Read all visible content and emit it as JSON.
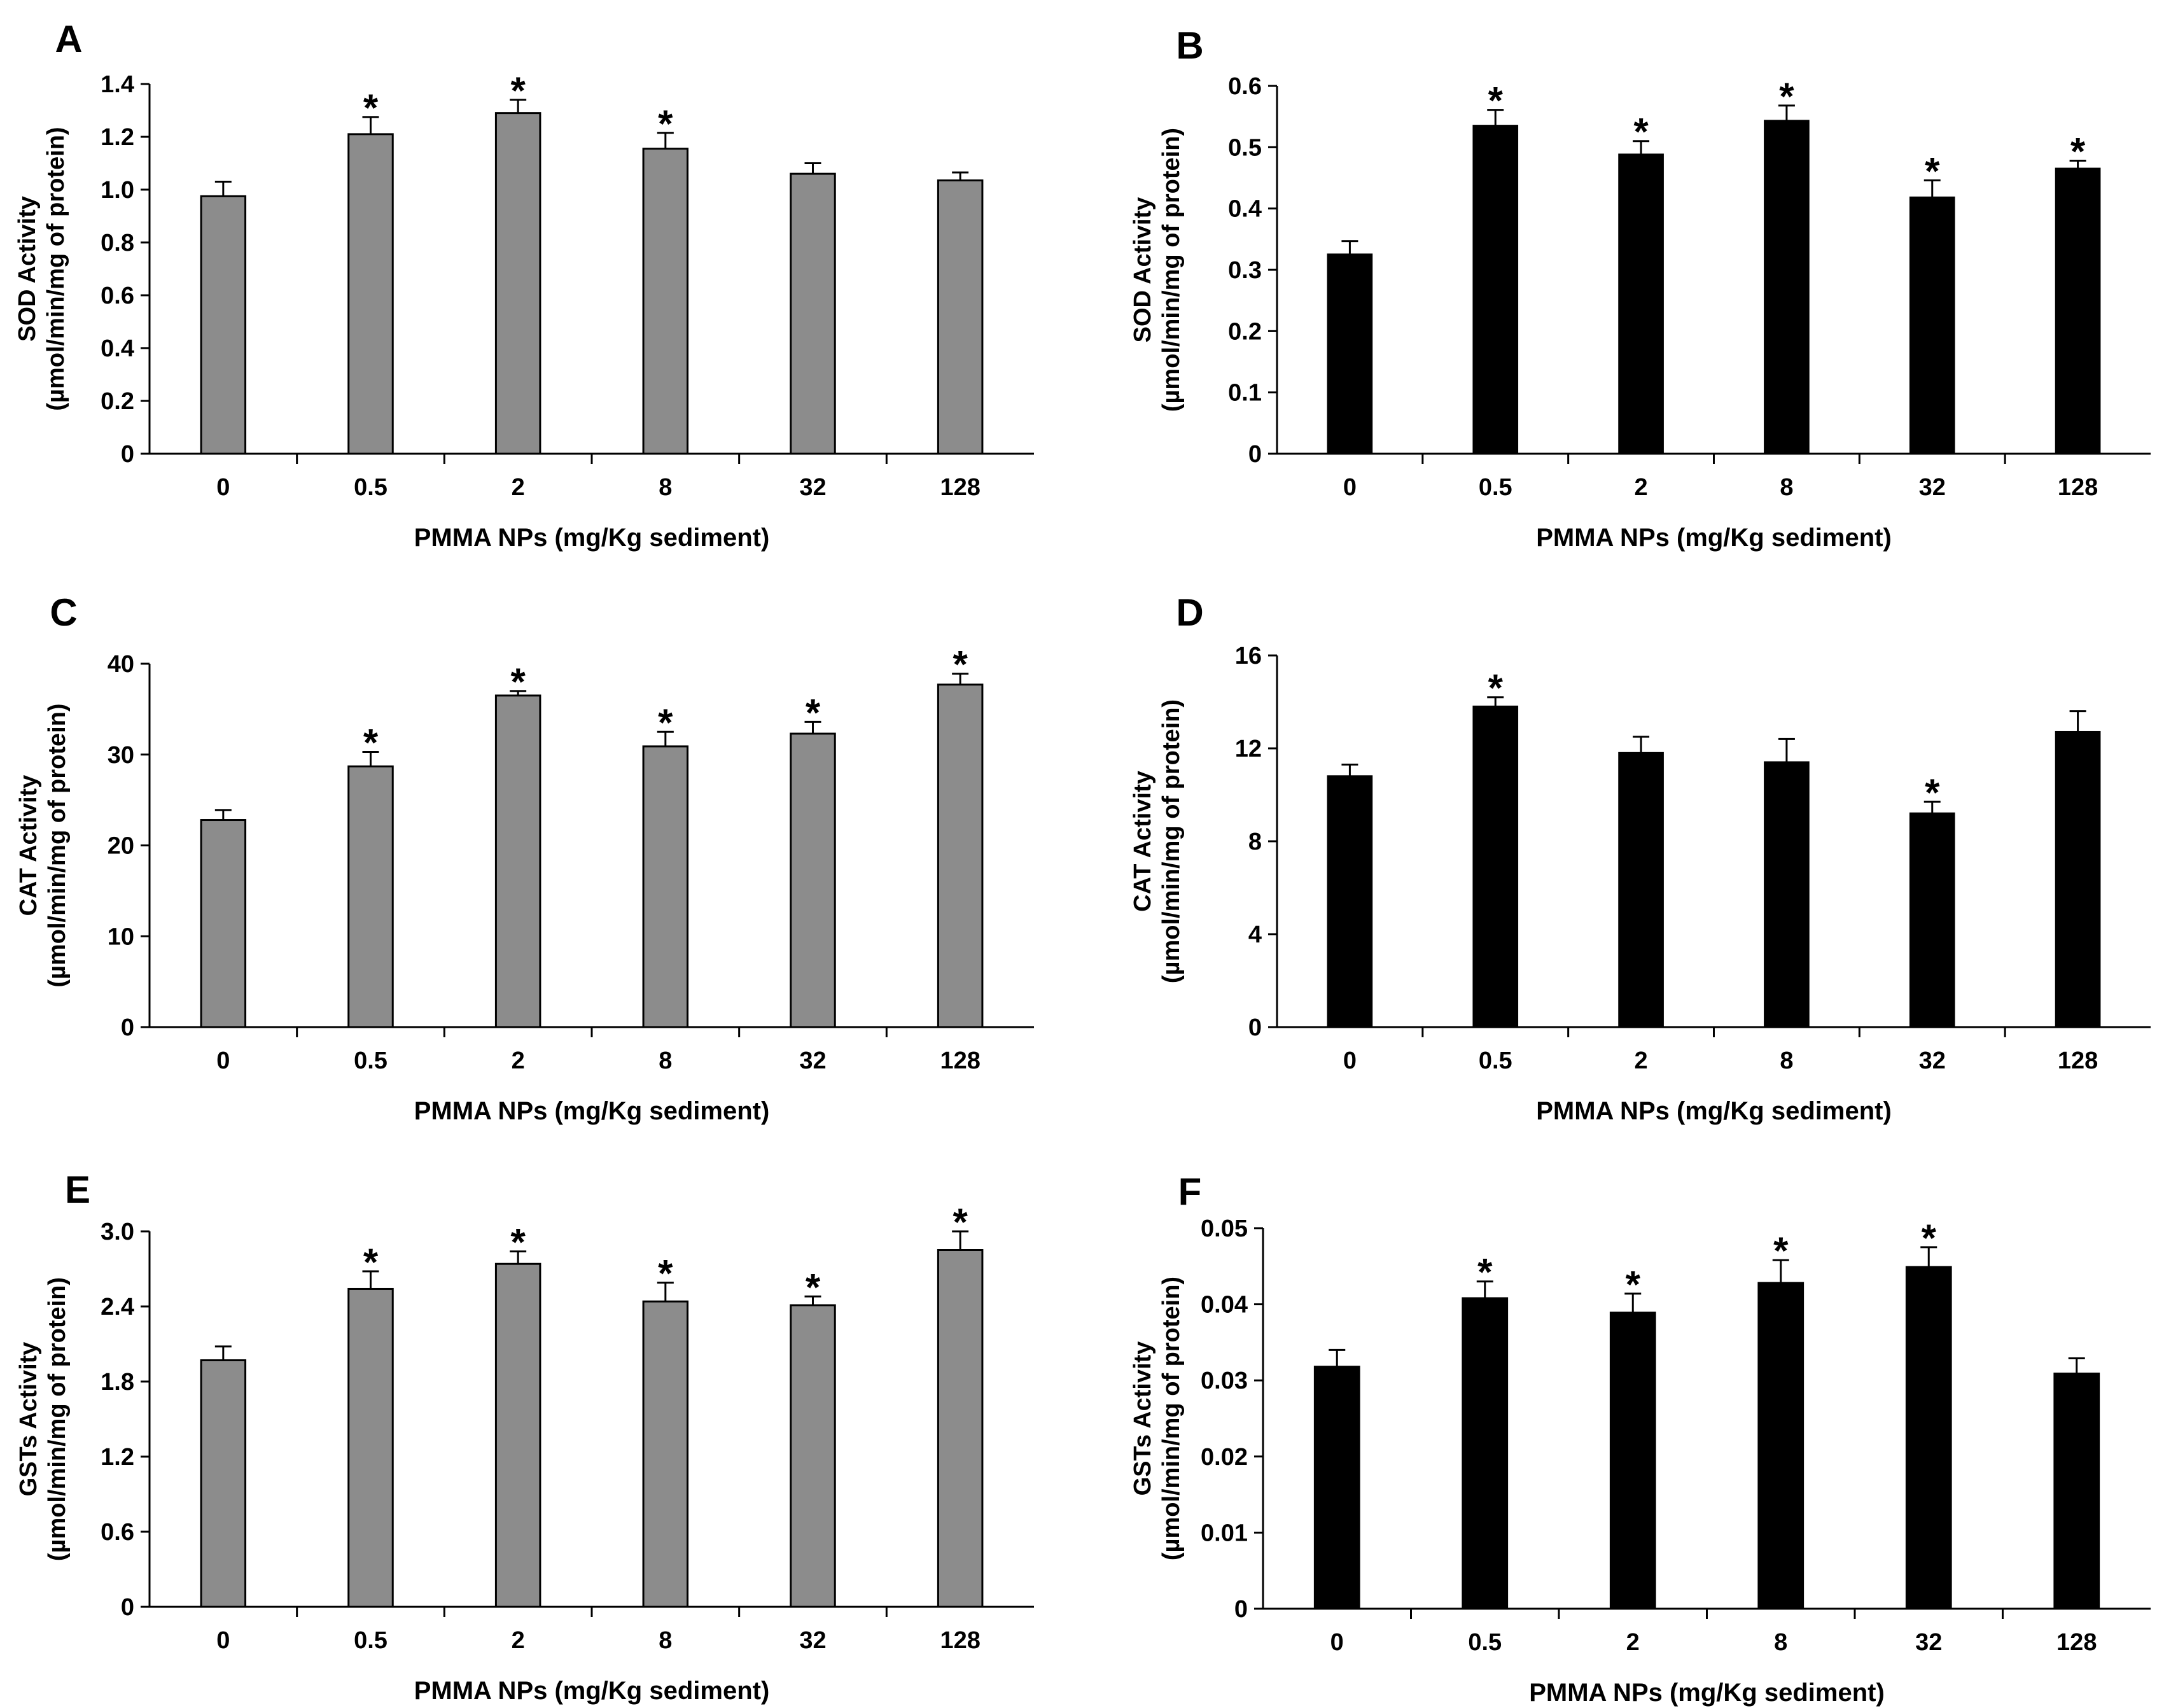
{
  "chart_data": [
    {
      "type": "bar",
      "panel": "A",
      "categories": [
        "0",
        "0.5",
        "2",
        "8",
        "32",
        "128"
      ],
      "values": [
        0.975,
        1.21,
        1.29,
        1.155,
        1.06,
        1.035
      ],
      "errors": [
        0.055,
        0.065,
        0.05,
        0.06,
        0.04,
        0.03
      ],
      "significant": [
        false,
        true,
        true,
        true,
        false,
        false
      ],
      "xlabel": "PMMA NPs (mg/Kg sediment)",
      "ylabel": [
        "SOD Activity",
        "(µmol/min/mg of protein)"
      ],
      "ylim": [
        0,
        1.4
      ],
      "yticks": [
        "0",
        "0.2",
        "0.4",
        "0.6",
        "0.8",
        "1.0",
        "1.2",
        "1.4"
      ],
      "bar_color": "#8c8c8c"
    },
    {
      "type": "bar",
      "panel": "B",
      "categories": [
        "0",
        "0.5",
        "2",
        "8",
        "32",
        "128"
      ],
      "values": [
        0.325,
        0.535,
        0.488,
        0.543,
        0.418,
        0.465
      ],
      "errors": [
        0.022,
        0.026,
        0.022,
        0.025,
        0.028,
        0.013
      ],
      "significant": [
        false,
        true,
        true,
        true,
        true,
        true
      ],
      "xlabel": "PMMA NPs (mg/Kg sediment)",
      "ylabel": [
        "SOD Activity",
        "(µmol/min/mg of protein)"
      ],
      "ylim": [
        0,
        0.6
      ],
      "yticks": [
        "0",
        "0.1",
        "0.2",
        "0.3",
        "0.4",
        "0.5",
        "0.6"
      ],
      "bar_color": "#000000"
    },
    {
      "type": "bar",
      "panel": "C",
      "categories": [
        "0",
        "0.5",
        "2",
        "8",
        "32",
        "128"
      ],
      "values": [
        22.8,
        28.7,
        36.5,
        30.9,
        32.3,
        37.7
      ],
      "errors": [
        1.1,
        1.6,
        0.5,
        1.6,
        1.3,
        1.2
      ],
      "significant": [
        false,
        true,
        true,
        true,
        true,
        true
      ],
      "xlabel": "PMMA NPs (mg/Kg sediment)",
      "ylabel": [
        "CAT Activity",
        "(µmol/min/mg of protein)"
      ],
      "ylim": [
        0,
        40
      ],
      "yticks": [
        "0",
        "10",
        "20",
        "30",
        "40"
      ],
      "bar_color": "#8c8c8c"
    },
    {
      "type": "bar",
      "panel": "D",
      "categories": [
        "0",
        "0.5",
        "2",
        "8",
        "32",
        "128"
      ],
      "values": [
        10.8,
        13.8,
        11.8,
        11.4,
        9.2,
        12.7
      ],
      "errors": [
        0.5,
        0.4,
        0.7,
        1.0,
        0.5,
        0.9
      ],
      "significant": [
        false,
        true,
        false,
        false,
        true,
        false
      ],
      "xlabel": "PMMA NPs (mg/Kg sediment)",
      "ylabel": [
        "CAT Activity",
        "(µmol/min/mg of protein)"
      ],
      "ylim": [
        0,
        16
      ],
      "yticks": [
        "0",
        "4",
        "8",
        "12",
        "16"
      ],
      "bar_color": "#000000"
    },
    {
      "type": "bar",
      "panel": "E",
      "categories": [
        "0",
        "0.5",
        "2",
        "8",
        "32",
        "128"
      ],
      "values": [
        1.97,
        2.54,
        2.74,
        2.44,
        2.41,
        2.85
      ],
      "errors": [
        0.11,
        0.14,
        0.1,
        0.15,
        0.07,
        0.15
      ],
      "significant": [
        false,
        true,
        true,
        true,
        true,
        true
      ],
      "xlabel": "PMMA NPs (mg/Kg sediment)",
      "ylabel": [
        "GSTs Activity",
        "(µmol/min/mg of protein)"
      ],
      "ylim": [
        0,
        3.0
      ],
      "yticks": [
        "0",
        "0.6",
        "1.2",
        "1.8",
        "2.4",
        "3.0"
      ],
      "bar_color": "#8c8c8c"
    },
    {
      "type": "bar",
      "panel": "F",
      "categories": [
        "0",
        "0.5",
        "2",
        "8",
        "32",
        "128"
      ],
      "values": [
        0.0318,
        0.0408,
        0.0389,
        0.0428,
        0.0449,
        0.0309
      ],
      "errors": [
        0.0022,
        0.0022,
        0.0025,
        0.003,
        0.0026,
        0.002
      ],
      "significant": [
        false,
        true,
        true,
        true,
        true,
        false
      ],
      "xlabel": "PMMA NPs (mg/Kg sediment)",
      "ylabel": [
        "GSTs Activity",
        "(µmol/min/mg of protein)"
      ],
      "ylim": [
        0,
        0.05
      ],
      "yticks": [
        "0",
        "0.01",
        "0.02",
        "0.03",
        "0.04",
        "0.05"
      ],
      "bar_color": "#000000"
    }
  ]
}
